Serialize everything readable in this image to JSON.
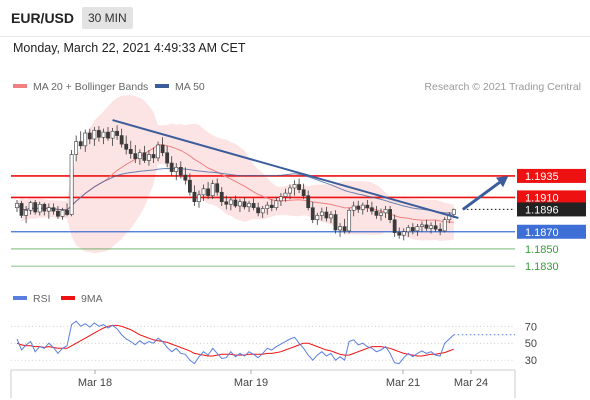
{
  "header": {
    "symbol": "EUR/USD",
    "timeframe": "30 MIN",
    "datetime": "Monday, March 22, 2021 4:49:33 AM CET"
  },
  "colors": {
    "candle": "#3a3a3a",
    "bollinger": "#f7a6a6",
    "ma20": "#f08080",
    "ma50": "#3c5d9b",
    "trendline": "#3c5d9b",
    "resistance": "#ee1111",
    "support": "#3d6fd6",
    "target": "#3a9a3a",
    "rsi": "#5b7fe0",
    "rsi_ma": "#ee1111",
    "current": "#222222"
  },
  "chart_data": [
    {
      "type": "candlestick",
      "legend": [
        {
          "name": "MA 20 + Bollinger Bands",
          "color": "#f08080"
        },
        {
          "name": "MA 50",
          "color": "#3c5d9b"
        }
      ],
      "watermark": "Research © 2021 Trading Central",
      "ylim": [
        1.1808,
        1.2056
      ],
      "x_ticks": [
        "Mar 18",
        "Mar 19",
        "Mar 21",
        "Mar 24"
      ],
      "candles": [
        [
          1.1898,
          1.1907,
          1.1893,
          1.1903
        ],
        [
          1.1903,
          1.1906,
          1.1886,
          1.1889
        ],
        [
          1.1889,
          1.19,
          1.188,
          1.1895
        ],
        [
          1.1895,
          1.1906,
          1.189,
          1.1904
        ],
        [
          1.1904,
          1.1907,
          1.189,
          1.1893
        ],
        [
          1.1893,
          1.1905,
          1.1889,
          1.1902
        ],
        [
          1.1902,
          1.1904,
          1.1889,
          1.1894
        ],
        [
          1.1894,
          1.1903,
          1.1885,
          1.1898
        ],
        [
          1.1898,
          1.1903,
          1.189,
          1.1894
        ],
        [
          1.1894,
          1.19,
          1.1885,
          1.1888
        ],
        [
          1.1888,
          1.1898,
          1.1884,
          1.1895
        ],
        [
          1.1895,
          1.1903,
          1.1888,
          1.189
        ],
        [
          1.189,
          1.1965,
          1.1888,
          1.196
        ],
        [
          1.196,
          1.1982,
          1.1952,
          1.1975
        ],
        [
          1.1975,
          1.1987,
          1.1966,
          1.197
        ],
        [
          1.197,
          1.1989,
          1.1963,
          1.1985
        ],
        [
          1.1985,
          1.199,
          1.1972,
          1.1978
        ],
        [
          1.1978,
          1.1992,
          1.197,
          1.1988
        ],
        [
          1.1988,
          1.1993,
          1.1975,
          1.198
        ],
        [
          1.198,
          1.199,
          1.1972,
          1.1986
        ],
        [
          1.1986,
          1.1992,
          1.1976,
          1.1979
        ],
        [
          1.1979,
          1.1991,
          1.197,
          1.1987
        ],
        [
          1.1987,
          1.1994,
          1.1977,
          1.1982
        ],
        [
          1.1982,
          1.199,
          1.1968,
          1.1972
        ],
        [
          1.1972,
          1.1982,
          1.196,
          1.1966
        ],
        [
          1.1966,
          1.1976,
          1.1955,
          1.1961
        ],
        [
          1.1961,
          1.1971,
          1.195,
          1.1955
        ],
        [
          1.1955,
          1.1966,
          1.1948,
          1.1962
        ],
        [
          1.1962,
          1.197,
          1.195,
          1.1953
        ],
        [
          1.1953,
          1.1965,
          1.1947,
          1.196
        ],
        [
          1.196,
          1.1968,
          1.195,
          1.1956
        ],
        [
          1.1956,
          1.1975,
          1.1952,
          1.1971
        ],
        [
          1.1971,
          1.198,
          1.1958,
          1.1962
        ],
        [
          1.1962,
          1.197,
          1.1945,
          1.195
        ],
        [
          1.195,
          1.1958,
          1.1935,
          1.194
        ],
        [
          1.194,
          1.195,
          1.193,
          1.1945
        ],
        [
          1.1945,
          1.1952,
          1.1932,
          1.1936
        ],
        [
          1.1936,
          1.1945,
          1.1925,
          1.193
        ],
        [
          1.193,
          1.1938,
          1.1912,
          1.1916
        ],
        [
          1.1916,
          1.1924,
          1.19,
          1.1905
        ],
        [
          1.1905,
          1.1918,
          1.1898,
          1.1913
        ],
        [
          1.1913,
          1.1925,
          1.1906,
          1.192
        ],
        [
          1.192,
          1.1928,
          1.1908,
          1.1912
        ],
        [
          1.1912,
          1.193,
          1.1908,
          1.1926
        ],
        [
          1.1926,
          1.1932,
          1.1912,
          1.1916
        ],
        [
          1.1916,
          1.1922,
          1.19,
          1.1905
        ],
        [
          1.1905,
          1.1912,
          1.1896,
          1.1902
        ],
        [
          1.1902,
          1.191,
          1.1895,
          1.1907
        ],
        [
          1.1907,
          1.1912,
          1.1898,
          1.19
        ],
        [
          1.19,
          1.1908,
          1.1893,
          1.1905
        ],
        [
          1.1905,
          1.191,
          1.1896,
          1.1899
        ],
        [
          1.1899,
          1.1906,
          1.1893,
          1.1903
        ],
        [
          1.1903,
          1.1909,
          1.1895,
          1.1898
        ],
        [
          1.1898,
          1.1904,
          1.1888,
          1.1892
        ],
        [
          1.1892,
          1.19,
          1.1886,
          1.1897
        ],
        [
          1.1897,
          1.1905,
          1.189,
          1.1901
        ],
        [
          1.1901,
          1.1908,
          1.1894,
          1.1898
        ],
        [
          1.1898,
          1.191,
          1.1895,
          1.1906
        ],
        [
          1.1906,
          1.1915,
          1.19,
          1.1911
        ],
        [
          1.1911,
          1.192,
          1.1905,
          1.1915
        ],
        [
          1.1915,
          1.1925,
          1.1908,
          1.1921
        ],
        [
          1.1921,
          1.193,
          1.1912,
          1.1925
        ],
        [
          1.1925,
          1.1932,
          1.1915,
          1.1919
        ],
        [
          1.1919,
          1.1926,
          1.1908,
          1.1912
        ],
        [
          1.1912,
          1.1918,
          1.1895,
          1.1898
        ],
        [
          1.1898,
          1.1905,
          1.188,
          1.1884
        ],
        [
          1.1884,
          1.1892,
          1.1878,
          1.1889
        ],
        [
          1.1889,
          1.1898,
          1.1883,
          1.1893
        ],
        [
          1.1893,
          1.1899,
          1.1882,
          1.1886
        ],
        [
          1.1886,
          1.1894,
          1.188,
          1.189
        ],
        [
          1.189,
          1.1895,
          1.1868,
          1.1872
        ],
        [
          1.1872,
          1.188,
          1.1864,
          1.1876
        ],
        [
          1.1876,
          1.1885,
          1.1868,
          1.1871
        ],
        [
          1.1871,
          1.1898,
          1.1868,
          1.1895
        ],
        [
          1.1895,
          1.1905,
          1.1888,
          1.19
        ],
        [
          1.19,
          1.1906,
          1.1892,
          1.1896
        ],
        [
          1.1896,
          1.1904,
          1.189,
          1.1901
        ],
        [
          1.1901,
          1.1907,
          1.1893,
          1.1898
        ],
        [
          1.1898,
          1.1905,
          1.189,
          1.1894
        ],
        [
          1.1894,
          1.19,
          1.1885,
          1.1889
        ],
        [
          1.1889,
          1.1897,
          1.1883,
          1.1892
        ],
        [
          1.1892,
          1.19,
          1.1886,
          1.1896
        ],
        [
          1.1896,
          1.19,
          1.188,
          1.1884
        ],
        [
          1.1884,
          1.189,
          1.1864,
          1.1869
        ],
        [
          1.1869,
          1.1875,
          1.1862,
          1.1866
        ],
        [
          1.1866,
          1.1874,
          1.186,
          1.187
        ],
        [
          1.187,
          1.1878,
          1.1864,
          1.1875
        ],
        [
          1.1875,
          1.188,
          1.1867,
          1.1871
        ],
        [
          1.1871,
          1.1879,
          1.1865,
          1.1876
        ],
        [
          1.1876,
          1.1882,
          1.187,
          1.1878
        ],
        [
          1.1878,
          1.1884,
          1.1871,
          1.1874
        ],
        [
          1.1874,
          1.1881,
          1.1868,
          1.1877
        ],
        [
          1.1877,
          1.1883,
          1.187,
          1.1873
        ],
        [
          1.1873,
          1.188,
          1.1866,
          1.1871
        ],
        [
          1.1871,
          1.1887,
          1.1869,
          1.1884
        ],
        [
          1.1884,
          1.1893,
          1.188,
          1.189
        ],
        [
          1.189,
          1.1897,
          1.1886,
          1.1896
        ]
      ],
      "levels": [
        {
          "value": 1.1935,
          "label": "1.1935",
          "role": "resistance"
        },
        {
          "value": 1.191,
          "label": "1.1910",
          "role": "resistance"
        },
        {
          "value": 1.1896,
          "label": "1.1896",
          "role": "current"
        },
        {
          "value": 1.187,
          "label": "1.1870",
          "role": "support"
        },
        {
          "value": 1.185,
          "label": "1.1850",
          "role": "target"
        },
        {
          "value": 1.183,
          "label": "1.1830",
          "role": "target"
        }
      ],
      "trendline": {
        "from": [
          21,
          1.2
        ],
        "to": [
          97,
          1.1886
        ]
      },
      "arrow": {
        "from": [
          98,
          1.1896
        ],
        "to": [
          108,
          1.1935
        ]
      }
    },
    {
      "type": "line",
      "legend": [
        {
          "name": "RSI",
          "color": "#5b7fe0"
        },
        {
          "name": "9MA",
          "color": "#ee1111"
        }
      ],
      "ylim": [
        22,
        88
      ],
      "y_ticks": [
        70,
        50,
        30
      ],
      "rsi": [
        55,
        42,
        48,
        52,
        40,
        46,
        44,
        50,
        45,
        38,
        44,
        47,
        72,
        76,
        70,
        73,
        69,
        74,
        70,
        72,
        68,
        71,
        67,
        60,
        55,
        52,
        48,
        53,
        49,
        52,
        50,
        56,
        52,
        45,
        40,
        44,
        38,
        37,
        30,
        26,
        34,
        40,
        36,
        44,
        38,
        32,
        33,
        40,
        34,
        38,
        35,
        40,
        37,
        33,
        38,
        44,
        42,
        46,
        49,
        52,
        55,
        57,
        50,
        44,
        36,
        30,
        36,
        40,
        35,
        38,
        30,
        34,
        30,
        52,
        54,
        48,
        50,
        46,
        44,
        40,
        42,
        46,
        38,
        27,
        26,
        33,
        38,
        34,
        38,
        41,
        38,
        40,
        36,
        35,
        50,
        55,
        60
      ],
      "ma": [
        50,
        48,
        47,
        47,
        46,
        46,
        45,
        46,
        45,
        44,
        44,
        44,
        47,
        50,
        53,
        56,
        59,
        62,
        65,
        68,
        70,
        71,
        71,
        70,
        68,
        66,
        63,
        60,
        58,
        56,
        54,
        53,
        52,
        51,
        49,
        47,
        45,
        43,
        41,
        38,
        37,
        36,
        35,
        35,
        36,
        37,
        37,
        37,
        36,
        36,
        36,
        37,
        37,
        37,
        37,
        38,
        38,
        39,
        40,
        42,
        44,
        46,
        48,
        50,
        50,
        48,
        46,
        44,
        42,
        41,
        39,
        37,
        36,
        36,
        38,
        40,
        42,
        44,
        46,
        46,
        46,
        45,
        44,
        42,
        40,
        38,
        37,
        36,
        35,
        35,
        36,
        37,
        37,
        38,
        39,
        41,
        43
      ]
    }
  ]
}
